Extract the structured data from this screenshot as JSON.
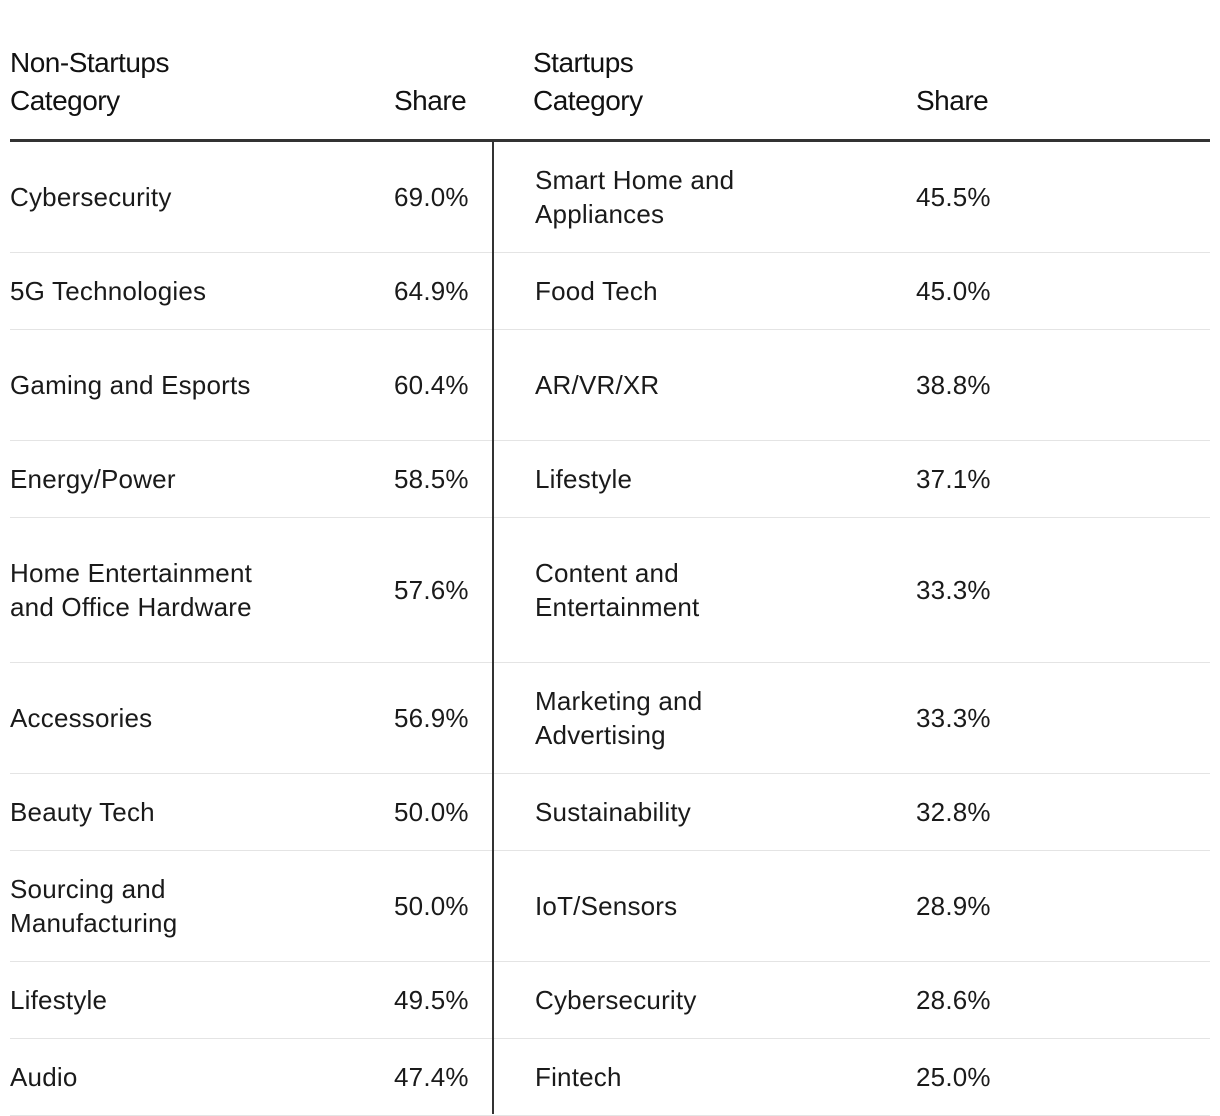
{
  "chart_data": {
    "type": "table",
    "headers": {
      "non_startups_category": "Non-Startups\nCategory",
      "non_startups_share": "Share",
      "startups_category": "Startups\nCategory",
      "startups_share": "Share"
    },
    "rows": [
      {
        "ns_category": "Cybersecurity",
        "ns_share": "69.0%",
        "s_category": "Smart Home and Appliances",
        "s_share": "45.5%"
      },
      {
        "ns_category": "5G Technologies",
        "ns_share": "64.9%",
        "s_category": "Food Tech",
        "s_share": "45.0%"
      },
      {
        "ns_category": "Gaming and Esports",
        "ns_share": "60.4%",
        "s_category": "AR/VR/XR",
        "s_share": "38.8%"
      },
      {
        "ns_category": "Energy/Power",
        "ns_share": "58.5%",
        "s_category": "Lifestyle",
        "s_share": "37.1%"
      },
      {
        "ns_category": "Home Entertainment and Office Hardware",
        "ns_share": "57.6%",
        "s_category": "Content and Entertainment",
        "s_share": "33.3%"
      },
      {
        "ns_category": "Accessories",
        "ns_share": "56.9%",
        "s_category": "Marketing and Advertising",
        "s_share": "33.3%"
      },
      {
        "ns_category": "Beauty Tech",
        "ns_share": "50.0%",
        "s_category": "Sustainability",
        "s_share": "32.8%"
      },
      {
        "ns_category": "Sourcing and Manufacturing",
        "ns_share": "50.0%",
        "s_category": "IoT/Sensors",
        "s_share": "28.9%"
      },
      {
        "ns_category": "Lifestyle",
        "ns_share": "49.5%",
        "s_category": "Cybersecurity",
        "s_share": "28.6%"
      },
      {
        "ns_category": "Audio",
        "ns_share": "47.4%",
        "s_category": "Fintech",
        "s_share": "25.0%"
      }
    ]
  },
  "header_lines": {
    "ns_top": "Non-Startups",
    "ns_bottom": "Category",
    "s_top": "Startups",
    "s_bottom": "Category",
    "share": "Share"
  }
}
